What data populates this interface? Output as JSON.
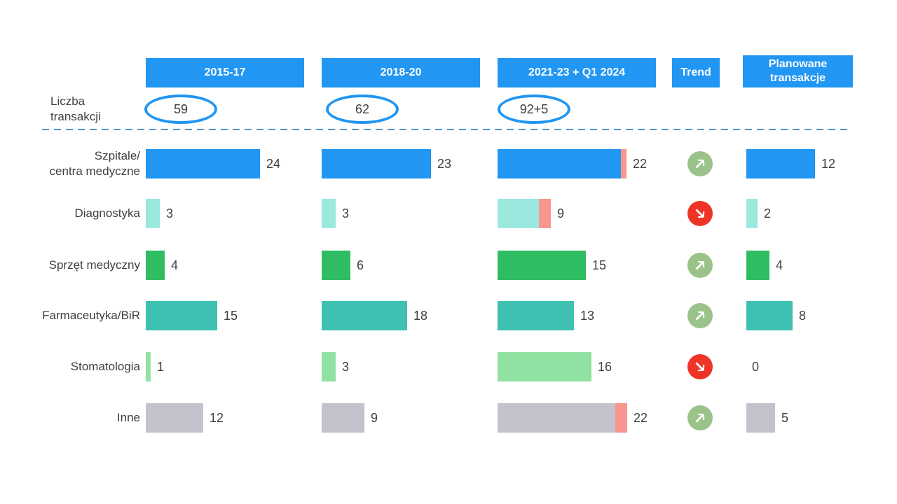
{
  "header": {
    "col1": "2015-17",
    "col2": "2018-20",
    "col3": "2021-23 + Q1 2024",
    "trend": "Trend",
    "planned_line1": "Planowane",
    "planned_line2": "transakcje",
    "left_line1": "Liczba",
    "left_line2": "transakcji"
  },
  "totals": [
    "59",
    "62",
    "92+5"
  ],
  "rows": [
    {
      "label_lines": [
        "Szpitale/",
        "centra medyczne"
      ],
      "color": "#2196F3",
      "values": [
        24,
        23
      ],
      "col3": {
        "main": 21,
        "q1": 1,
        "label": "22"
      },
      "trend": "up",
      "planned": 12,
      "planned_label": "12"
    },
    {
      "label_lines": [
        "Diagnostyka"
      ],
      "color": "#9BE8DF",
      "values": [
        3,
        3
      ],
      "col3": {
        "main": 7,
        "q1": 2,
        "label": "9"
      },
      "trend": "down",
      "planned": 2,
      "planned_label": "2"
    },
    {
      "label_lines": [
        "Sprzęt medyczny"
      ],
      "color": "#30BD62",
      "values": [
        4,
        6
      ],
      "col3": {
        "main": 15,
        "q1": 0,
        "label": "15"
      },
      "trend": "up",
      "planned": 4,
      "planned_label": "4"
    },
    {
      "label_lines": [
        "Farmaceutyka/BiR"
      ],
      "color": "#3EC1B1",
      "values": [
        15,
        18
      ],
      "col3": {
        "main": 13,
        "q1": 0,
        "label": "13"
      },
      "trend": "up",
      "planned": 8,
      "planned_label": "8"
    },
    {
      "label_lines": [
        "Stomatologia"
      ],
      "color": "#8FE2A2",
      "values": [
        1,
        3
      ],
      "col3": {
        "main": 16,
        "q1": 0,
        "label": "16"
      },
      "trend": "down",
      "planned": 0,
      "planned_label": "0"
    },
    {
      "label_lines": [
        "Inne"
      ],
      "color": "#C4C2CC",
      "values": [
        12,
        9
      ],
      "col3": {
        "main": 20,
        "q1": 2,
        "label": "22"
      },
      "trend": "up",
      "planned": 5,
      "planned_label": "5"
    }
  ],
  "colors": {
    "header_bg": "#2196F3",
    "outline_blue": "#2196F3",
    "q1_2024_segment": "#F6968C",
    "trend_up_bg": "#9BC389",
    "trend_down_bg": "#EE3426",
    "dashed_line": "#4F96D2",
    "text": "#404040"
  },
  "chart_data": {
    "type": "bar",
    "orientation": "horizontal",
    "title": "",
    "categories": [
      "Szpitale/centra medyczne",
      "Diagnostyka",
      "Sprzęt medyczny",
      "Farmaceutyka/BiR",
      "Stomatologia",
      "Inne"
    ],
    "series": [
      {
        "name": "2015-17",
        "total_label": "59",
        "values": [
          24,
          3,
          4,
          15,
          1,
          12
        ]
      },
      {
        "name": "2018-20",
        "total_label": "62",
        "values": [
          23,
          3,
          6,
          18,
          3,
          9
        ]
      },
      {
        "name": "2021-23 + Q1 2024",
        "total_label": "92+5",
        "values": [
          22,
          9,
          15,
          13,
          16,
          22
        ],
        "q1_2024_component": [
          1,
          2,
          0,
          0,
          0,
          2
        ]
      },
      {
        "name": "Planowane transakcje",
        "values": [
          12,
          2,
          4,
          8,
          0,
          5
        ]
      }
    ],
    "trend": [
      "up",
      "down",
      "up",
      "up",
      "down",
      "up"
    ],
    "count_axis_label": "Liczba transakcji",
    "legend_position": "none",
    "grid": false
  }
}
